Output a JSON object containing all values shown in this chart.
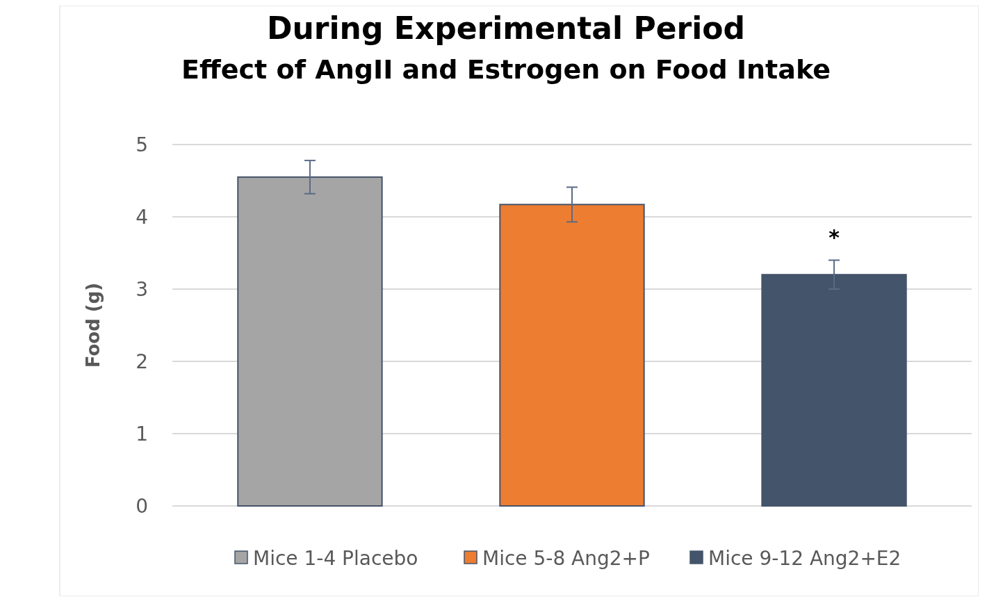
{
  "chart_data": {
    "type": "bar",
    "title": "Effect of AngII and Estrogen on Food Intake",
    "ylabel": "Food (g)",
    "categories": [
      null,
      null,
      null
    ],
    "series": [
      {
        "name": "Mice 1-4 Placebo",
        "color": "#a5a5a5",
        "values": [
          4.55,
          null,
          null
        ],
        "errors": [
          0.23,
          null,
          null
        ]
      },
      {
        "name": "Mice 5-8 Ang2+P",
        "color": "#ed7d31",
        "values": [
          null,
          4.17,
          null
        ],
        "errors": [
          null,
          0.24,
          null
        ]
      },
      {
        "name": "Mice 9-12 Ang2+E2",
        "color": "#44546a",
        "values": [
          null,
          null,
          3.2
        ],
        "errors": [
          null,
          null,
          0.2
        ]
      }
    ],
    "ylim": [
      0,
      5
    ],
    "yticks": [
      0,
      1,
      2,
      3,
      4,
      5
    ],
    "grid": "y",
    "legend": "bottom",
    "annotations": [
      "During Experimental Period",
      "*"
    ]
  }
}
